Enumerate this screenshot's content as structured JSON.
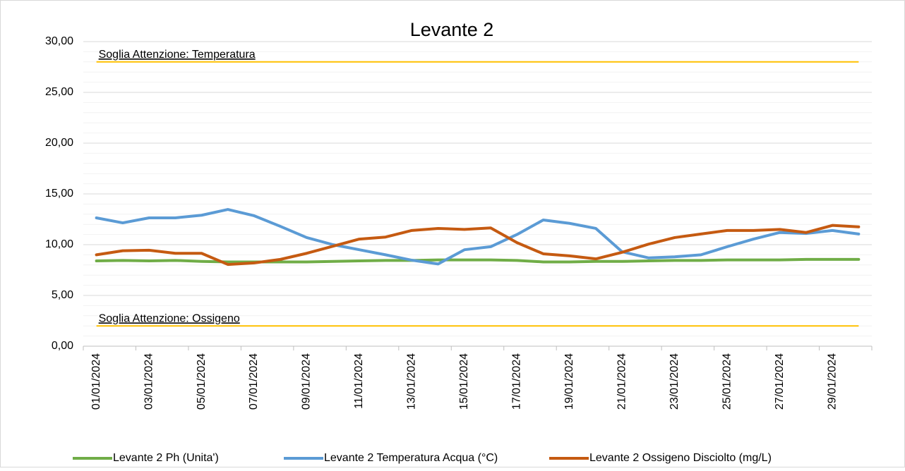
{
  "chart_data": {
    "type": "line",
    "title": "Levante 2",
    "categories": [
      "01/01/2024",
      null,
      "03/01/2024",
      null,
      "05/01/2024",
      null,
      "07/01/2024",
      null,
      "09/01/2024",
      null,
      "11/01/2024",
      null,
      "13/01/2024",
      null,
      "15/01/2024",
      null,
      "17/01/2024",
      null,
      "19/01/2024",
      null,
      "21/01/2024",
      null,
      "23/01/2024",
      null,
      "25/01/2024",
      null,
      "27/01/2024",
      null,
      "29/01/2024",
      null
    ],
    "series": [
      {
        "name": "Levante 2 Ph (Unita')",
        "color": "#70ad47",
        "values": [
          8.4,
          8.45,
          8.4,
          8.45,
          8.35,
          8.3,
          8.3,
          8.3,
          8.3,
          8.35,
          8.4,
          8.45,
          8.45,
          8.5,
          8.5,
          8.5,
          8.45,
          8.3,
          8.3,
          8.35,
          8.35,
          8.4,
          8.45,
          8.45,
          8.5,
          8.5,
          8.5,
          8.55,
          8.55,
          8.55
        ]
      },
      {
        "name": "Levante 2 Temperatura Acqua (°C)",
        "color": "#5b9bd5",
        "values": [
          12.64,
          12.15,
          12.64,
          12.64,
          12.9,
          13.47,
          12.85,
          11.8,
          10.7,
          10.0,
          9.5,
          9.0,
          8.47,
          8.1,
          9.5,
          9.8,
          11.0,
          12.43,
          12.1,
          11.6,
          9.3,
          8.7,
          8.8,
          9.0,
          9.8,
          10.55,
          11.2,
          11.1,
          11.4,
          11.05
        ]
      },
      {
        "name": "Levante 2 Ossigeno Disciolto (mg/L)",
        "color": "#c55a11",
        "values": [
          9.0,
          9.4,
          9.45,
          9.15,
          9.15,
          8.05,
          8.2,
          8.55,
          9.15,
          9.85,
          10.55,
          10.75,
          11.4,
          11.6,
          11.5,
          11.65,
          10.2,
          9.1,
          8.9,
          8.6,
          9.25,
          10.05,
          10.7,
          11.05,
          11.4,
          11.4,
          11.5,
          11.2,
          11.9,
          11.75
        ]
      }
    ],
    "thresholds": [
      {
        "label": "Soglia Attenzione: Temperatura",
        "value": 28,
        "color": "#ffc000"
      },
      {
        "label": "Soglia Attenzione: Ossigeno",
        "value": 2,
        "color": "#ffc000"
      }
    ],
    "ylim": [
      0,
      30
    ],
    "yticks": [
      {
        "value": 0,
        "label": "0,00"
      },
      {
        "value": 5,
        "label": "5,00"
      },
      {
        "value": 10,
        "label": "10,00"
      },
      {
        "value": 15,
        "label": "15,00"
      },
      {
        "value": 20,
        "label": "20,00"
      },
      {
        "value": 25,
        "label": "25,00"
      },
      {
        "value": 30,
        "label": "30,00"
      }
    ],
    "yminorticks": [
      1,
      2,
      3,
      4,
      6,
      7,
      8,
      9,
      11,
      12,
      13,
      14,
      16,
      17,
      18,
      19,
      21,
      22,
      23,
      24,
      26,
      27,
      28,
      29
    ],
    "grid": true,
    "legend": "bottom"
  }
}
